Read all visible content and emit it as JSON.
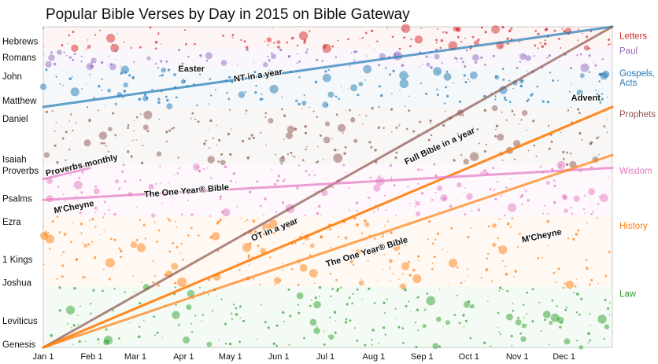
{
  "chart_data": {
    "type": "scatter",
    "title": "Popular Bible Verses by Day in 2015 on Bible Gateway",
    "x_axis": {
      "ticks": [
        "Jan 1",
        "Feb 1",
        "Mar 1",
        "Apr 1",
        "May 1",
        "Jun 1",
        "Jul 1",
        "Aug 1",
        "Sep 1",
        "Oct 1",
        "Nov 1",
        "Dec 1"
      ],
      "tick_days": [
        0,
        31,
        59,
        90,
        120,
        151,
        181,
        212,
        243,
        273,
        304,
        334
      ],
      "range_days": [
        0,
        365
      ]
    },
    "y_axis": {
      "note": "Bible position from Genesis (bottom) to Revelation (top), fraction of verses",
      "books": [
        {
          "name": "Hebrews",
          "pos": 0.955
        },
        {
          "name": "Romans",
          "pos": 0.904
        },
        {
          "name": "John",
          "pos": 0.845
        },
        {
          "name": "Matthew",
          "pos": 0.77
        },
        {
          "name": "Daniel",
          "pos": 0.713
        },
        {
          "name": "Isaiah",
          "pos": 0.587
        },
        {
          "name": "Proverbs",
          "pos": 0.551
        },
        {
          "name": "Psalms",
          "pos": 0.465
        },
        {
          "name": "Ezra",
          "pos": 0.392
        },
        {
          "name": "1 Kings",
          "pos": 0.274
        },
        {
          "name": "Joshua",
          "pos": 0.202
        },
        {
          "name": "Leviticus",
          "pos": 0.083
        },
        {
          "name": "Genesis",
          "pos": 0.01
        }
      ]
    },
    "series": [
      {
        "name": "Letters",
        "color": "#d62728",
        "range": [
          0.93,
          1.0
        ]
      },
      {
        "name": "Paul",
        "color": "#9467bd",
        "range": [
          0.87,
          0.93
        ]
      },
      {
        "name": "Gospels, Acts",
        "color": "#1f77b4",
        "range": [
          0.75,
          0.87
        ]
      },
      {
        "name": "Prophets",
        "color": "#8c564b",
        "range": [
          0.57,
          0.75
        ]
      },
      {
        "name": "Wisdom",
        "color": "#e377c2",
        "range": [
          0.41,
          0.57
        ]
      },
      {
        "name": "History",
        "color": "#ff7f0e",
        "range": [
          0.19,
          0.41
        ]
      },
      {
        "name": "Law",
        "color": "#2ca02c",
        "range": [
          0.0,
          0.19
        ]
      }
    ],
    "series_labels": [
      {
        "name": "Letters",
        "lines": [
          "Letters"
        ],
        "pos": 0.972
      },
      {
        "name": "Paul",
        "lines": [
          "Paul"
        ],
        "pos": 0.925
      },
      {
        "name": "Gospels, Acts",
        "lines": [
          "Gospels,",
          "Acts"
        ],
        "pos": 0.855
      },
      {
        "name": "Prophets",
        "lines": [
          "Prophets"
        ],
        "pos": 0.728
      },
      {
        "name": "Wisdom",
        "lines": [
          "Wisdom"
        ],
        "pos": 0.551
      },
      {
        "name": "History",
        "lines": [
          "History"
        ],
        "pos": 0.38
      },
      {
        "name": "Law",
        "lines": [
          "Law"
        ],
        "pos": 0.168
      }
    ],
    "reading_plans": [
      {
        "label": "NT in a year",
        "color": "#1f77b4",
        "start": [
          0,
          0.75
        ],
        "end": [
          365,
          1.0
        ]
      },
      {
        "label": "Full Bible in a year",
        "color": "#8c564b",
        "start": [
          0,
          0.0
        ],
        "end": [
          365,
          1.0
        ]
      },
      {
        "label": "OT in a year",
        "color": "#ff7f0e",
        "start": [
          0,
          0.0
        ],
        "end": [
          365,
          0.75
        ]
      },
      {
        "label": "The One Year® Bible",
        "color": "#ff7f0e",
        "start": [
          0,
          0.0
        ],
        "end": [
          365,
          0.75
        ]
      },
      {
        "label": "The One Year® Bible",
        "color": "#e377c2",
        "start": [
          0,
          0.46
        ],
        "end": [
          365,
          0.56
        ]
      },
      {
        "label": "Proverbs monthly",
        "color": "#e377c2",
        "start": [
          0,
          0.525
        ],
        "end": [
          30,
          0.56
        ]
      },
      {
        "label": "M'Cheyne",
        "color": "#ff7f0e",
        "start": [
          0,
          0.0
        ],
        "end": [
          365,
          0.6
        ]
      }
    ],
    "annotations": [
      {
        "text": "Easter",
        "day": 95,
        "pos": 0.86,
        "angle": 0
      },
      {
        "text": "NT in a year",
        "day": 138,
        "pos": 0.84,
        "angle": -9
      },
      {
        "text": "Advent",
        "day": 348,
        "pos": 0.77,
        "angle": 0
      },
      {
        "text": "Full Bible in a year",
        "day": 255,
        "pos": 0.62,
        "angle": -25
      },
      {
        "text": "Proverbs monthly",
        "day": 25,
        "pos": 0.56,
        "angle": -13
      },
      {
        "text": "The One Year® Bible",
        "day": 92,
        "pos": 0.48,
        "angle": -5
      },
      {
        "text": "M'Cheyne",
        "day": 20,
        "pos": 0.43,
        "angle": -11
      },
      {
        "text": "OT in a year",
        "day": 149,
        "pos": 0.36,
        "angle": -22
      },
      {
        "text": "The One Year® Bible",
        "day": 208,
        "pos": 0.29,
        "angle": -17
      },
      {
        "text": "M'Cheyne",
        "day": 320,
        "pos": 0.34,
        "angle": -12
      }
    ]
  }
}
